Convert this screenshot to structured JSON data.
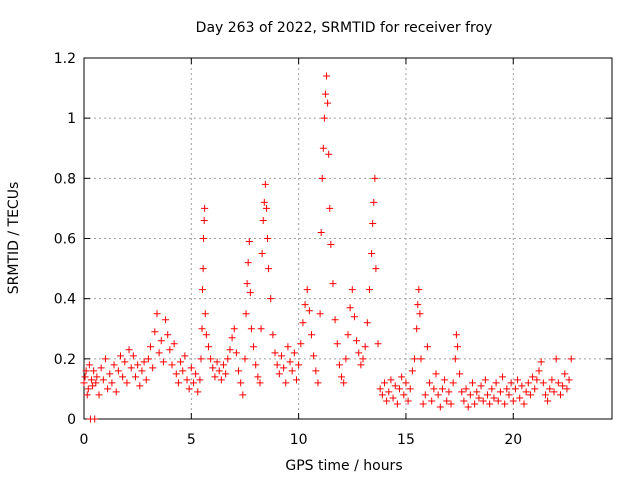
{
  "chart_data": {
    "type": "scatter",
    "title": "Day 263 of 2022, SRMTID for receiver froy",
    "xlabel": "GPS time / hours",
    "ylabel": "SRMTID / TECUs",
    "xlim": [
      0,
      24.6
    ],
    "ylim": [
      0,
      1.2
    ],
    "xticks": [
      0,
      5,
      10,
      15,
      20
    ],
    "yticks": [
      0,
      0.2,
      0.4,
      0.6,
      0.8,
      1,
      1.2
    ],
    "xtick_labels": [
      "0",
      "5",
      "10",
      "15",
      "20"
    ],
    "ytick_labels": [
      "0",
      "0.2",
      "0.4",
      "0.6",
      "0.8",
      "1",
      "1.2"
    ],
    "grid": true,
    "marker": "+",
    "color": "#ff0000",
    "series": [
      {
        "name": "SRMTID",
        "points": [
          [
            0.0,
            0.12
          ],
          [
            0.05,
            0.14
          ],
          [
            0.1,
            0.16
          ],
          [
            0.15,
            0.08
          ],
          [
            0.2,
            0.1
          ],
          [
            0.25,
            0.18
          ],
          [
            0.3,
            0.0
          ],
          [
            0.35,
            0.13
          ],
          [
            0.4,
            0.11
          ],
          [
            0.45,
            0.16
          ],
          [
            0.5,
            0.0
          ],
          [
            0.55,
            0.12
          ],
          [
            0.6,
            0.14
          ],
          [
            0.7,
            0.08
          ],
          [
            0.8,
            0.17
          ],
          [
            0.9,
            0.13
          ],
          [
            1.0,
            0.2
          ],
          [
            1.1,
            0.1
          ],
          [
            1.2,
            0.15
          ],
          [
            1.3,
            0.12
          ],
          [
            1.4,
            0.18
          ],
          [
            1.5,
            0.09
          ],
          [
            1.6,
            0.16
          ],
          [
            1.7,
            0.21
          ],
          [
            1.8,
            0.14
          ],
          [
            1.9,
            0.19
          ],
          [
            2.0,
            0.12
          ],
          [
            2.1,
            0.23
          ],
          [
            2.2,
            0.17
          ],
          [
            2.3,
            0.21
          ],
          [
            2.4,
            0.14
          ],
          [
            2.5,
            0.18
          ],
          [
            2.6,
            0.11
          ],
          [
            2.7,
            0.16
          ],
          [
            2.8,
            0.19
          ],
          [
            2.9,
            0.13
          ],
          [
            3.0,
            0.2
          ],
          [
            3.1,
            0.24
          ],
          [
            3.2,
            0.17
          ],
          [
            3.3,
            0.29
          ],
          [
            3.4,
            0.35
          ],
          [
            3.5,
            0.22
          ],
          [
            3.6,
            0.26
          ],
          [
            3.7,
            0.19
          ],
          [
            3.8,
            0.33
          ],
          [
            3.9,
            0.28
          ],
          [
            4.0,
            0.23
          ],
          [
            4.1,
            0.18
          ],
          [
            4.2,
            0.25
          ],
          [
            4.3,
            0.15
          ],
          [
            4.4,
            0.12
          ],
          [
            4.5,
            0.19
          ],
          [
            4.6,
            0.16
          ],
          [
            4.7,
            0.21
          ],
          [
            4.8,
            0.13
          ],
          [
            4.9,
            0.1
          ],
          [
            5.0,
            0.17
          ],
          [
            5.1,
            0.12
          ],
          [
            5.2,
            0.15
          ],
          [
            5.3,
            0.09
          ],
          [
            5.4,
            0.13
          ],
          [
            5.45,
            0.2
          ],
          [
            5.5,
            0.3
          ],
          [
            5.52,
            0.43
          ],
          [
            5.55,
            0.5
          ],
          [
            5.57,
            0.6
          ],
          [
            5.6,
            0.66
          ],
          [
            5.62,
            0.7
          ],
          [
            5.65,
            0.35
          ],
          [
            5.7,
            0.28
          ],
          [
            5.8,
            0.24
          ],
          [
            5.9,
            0.2
          ],
          [
            6.0,
            0.17
          ],
          [
            6.1,
            0.14
          ],
          [
            6.2,
            0.19
          ],
          [
            6.3,
            0.16
          ],
          [
            6.4,
            0.13
          ],
          [
            6.5,
            0.18
          ],
          [
            6.6,
            0.15
          ],
          [
            6.7,
            0.2
          ],
          [
            6.8,
            0.23
          ],
          [
            6.9,
            0.27
          ],
          [
            7.0,
            0.3
          ],
          [
            7.1,
            0.22
          ],
          [
            7.2,
            0.16
          ],
          [
            7.3,
            0.12
          ],
          [
            7.4,
            0.08
          ],
          [
            7.5,
            0.2
          ],
          [
            7.55,
            0.35
          ],
          [
            7.6,
            0.45
          ],
          [
            7.65,
            0.52
          ],
          [
            7.7,
            0.59
          ],
          [
            7.75,
            0.42
          ],
          [
            7.8,
            0.3
          ],
          [
            7.9,
            0.24
          ],
          [
            8.0,
            0.18
          ],
          [
            8.1,
            0.14
          ],
          [
            8.2,
            0.12
          ],
          [
            8.25,
            0.3
          ],
          [
            8.3,
            0.55
          ],
          [
            8.35,
            0.66
          ],
          [
            8.4,
            0.72
          ],
          [
            8.45,
            0.78
          ],
          [
            8.5,
            0.7
          ],
          [
            8.55,
            0.6
          ],
          [
            8.6,
            0.5
          ],
          [
            8.7,
            0.4
          ],
          [
            8.8,
            0.28
          ],
          [
            8.9,
            0.22
          ],
          [
            9.0,
            0.18
          ],
          [
            9.1,
            0.15
          ],
          [
            9.2,
            0.21
          ],
          [
            9.3,
            0.17
          ],
          [
            9.4,
            0.12
          ],
          [
            9.5,
            0.24
          ],
          [
            9.6,
            0.19
          ],
          [
            9.7,
            0.16
          ],
          [
            9.8,
            0.22
          ],
          [
            9.9,
            0.13
          ],
          [
            10.0,
            0.18
          ],
          [
            10.1,
            0.25
          ],
          [
            10.2,
            0.32
          ],
          [
            10.3,
            0.38
          ],
          [
            10.4,
            0.43
          ],
          [
            10.5,
            0.36
          ],
          [
            10.6,
            0.28
          ],
          [
            10.7,
            0.21
          ],
          [
            10.8,
            0.16
          ],
          [
            10.9,
            0.12
          ],
          [
            11.0,
            0.35
          ],
          [
            11.05,
            0.62
          ],
          [
            11.1,
            0.8
          ],
          [
            11.15,
            0.9
          ],
          [
            11.2,
            1.0
          ],
          [
            11.25,
            1.08
          ],
          [
            11.3,
            1.14
          ],
          [
            11.35,
            1.05
          ],
          [
            11.4,
            0.88
          ],
          [
            11.45,
            0.7
          ],
          [
            11.5,
            0.58
          ],
          [
            11.6,
            0.45
          ],
          [
            11.7,
            0.33
          ],
          [
            11.8,
            0.25
          ],
          [
            11.9,
            0.18
          ],
          [
            12.0,
            0.14
          ],
          [
            12.1,
            0.12
          ],
          [
            12.2,
            0.2
          ],
          [
            12.3,
            0.28
          ],
          [
            12.4,
            0.37
          ],
          [
            12.5,
            0.43
          ],
          [
            12.6,
            0.34
          ],
          [
            12.7,
            0.26
          ],
          [
            12.8,
            0.22
          ],
          [
            12.9,
            0.18
          ],
          [
            13.0,
            0.2
          ],
          [
            13.1,
            0.24
          ],
          [
            13.2,
            0.32
          ],
          [
            13.3,
            0.43
          ],
          [
            13.4,
            0.55
          ],
          [
            13.45,
            0.65
          ],
          [
            13.5,
            0.72
          ],
          [
            13.55,
            0.8
          ],
          [
            13.6,
            0.5
          ],
          [
            13.7,
            0.25
          ],
          [
            13.8,
            0.1
          ],
          [
            13.9,
            0.08
          ],
          [
            14.0,
            0.12
          ],
          [
            14.1,
            0.06
          ],
          [
            14.2,
            0.09
          ],
          [
            14.3,
            0.13
          ],
          [
            14.4,
            0.07
          ],
          [
            14.5,
            0.11
          ],
          [
            14.6,
            0.05
          ],
          [
            14.7,
            0.1
          ],
          [
            14.8,
            0.14
          ],
          [
            14.9,
            0.08
          ],
          [
            15.0,
            0.12
          ],
          [
            15.1,
            0.06
          ],
          [
            15.2,
            0.1
          ],
          [
            15.3,
            0.16
          ],
          [
            15.4,
            0.2
          ],
          [
            15.5,
            0.3
          ],
          [
            15.55,
            0.38
          ],
          [
            15.6,
            0.43
          ],
          [
            15.65,
            0.35
          ],
          [
            15.7,
            0.2
          ],
          [
            15.8,
            0.05
          ],
          [
            15.9,
            0.08
          ],
          [
            16.0,
            0.24
          ],
          [
            16.1,
            0.12
          ],
          [
            16.2,
            0.06
          ],
          [
            16.3,
            0.1
          ],
          [
            16.4,
            0.15
          ],
          [
            16.5,
            0.08
          ],
          [
            16.6,
            0.04
          ],
          [
            16.7,
            0.1
          ],
          [
            16.8,
            0.13
          ],
          [
            16.9,
            0.06
          ],
          [
            17.0,
            0.09
          ],
          [
            17.1,
            0.05
          ],
          [
            17.2,
            0.12
          ],
          [
            17.3,
            0.2
          ],
          [
            17.35,
            0.28
          ],
          [
            17.4,
            0.24
          ],
          [
            17.5,
            0.15
          ],
          [
            17.6,
            0.09
          ],
          [
            17.7,
            0.06
          ],
          [
            17.8,
            0.1
          ],
          [
            17.9,
            0.04
          ],
          [
            18.0,
            0.08
          ],
          [
            18.1,
            0.12
          ],
          [
            18.2,
            0.05
          ],
          [
            18.3,
            0.09
          ],
          [
            18.4,
            0.07
          ],
          [
            18.5,
            0.11
          ],
          [
            18.6,
            0.06
          ],
          [
            18.7,
            0.13
          ],
          [
            18.8,
            0.08
          ],
          [
            18.9,
            0.05
          ],
          [
            19.0,
            0.1
          ],
          [
            19.1,
            0.07
          ],
          [
            19.2,
            0.12
          ],
          [
            19.3,
            0.06
          ],
          [
            19.4,
            0.09
          ],
          [
            19.5,
            0.14
          ],
          [
            19.6,
            0.05
          ],
          [
            19.7,
            0.1
          ],
          [
            19.8,
            0.08
          ],
          [
            19.9,
            0.12
          ],
          [
            20.0,
            0.06
          ],
          [
            20.1,
            0.1
          ],
          [
            20.2,
            0.13
          ],
          [
            20.3,
            0.07
          ],
          [
            20.4,
            0.11
          ],
          [
            20.5,
            0.05
          ],
          [
            20.6,
            0.09
          ],
          [
            20.7,
            0.12
          ],
          [
            20.8,
            0.08
          ],
          [
            20.9,
            0.14
          ],
          [
            21.0,
            0.1
          ],
          [
            21.1,
            0.13
          ],
          [
            21.2,
            0.16
          ],
          [
            21.3,
            0.19
          ],
          [
            21.4,
            0.12
          ],
          [
            21.5,
            0.08
          ],
          [
            21.6,
            0.06
          ],
          [
            21.7,
            0.1
          ],
          [
            21.8,
            0.13
          ],
          [
            21.9,
            0.09
          ],
          [
            22.0,
            0.2
          ],
          [
            22.1,
            0.12
          ],
          [
            22.2,
            0.08
          ],
          [
            22.3,
            0.11
          ],
          [
            22.4,
            0.15
          ],
          [
            22.5,
            0.1
          ],
          [
            22.6,
            0.13
          ],
          [
            22.7,
            0.2
          ]
        ]
      }
    ]
  }
}
